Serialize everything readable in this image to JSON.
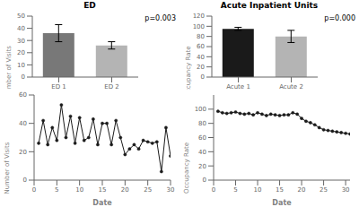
{
  "chart_data": [
    {
      "type": "bar",
      "title": "ED",
      "categories": [
        "ED 1",
        "ED 2"
      ],
      "values": [
        36,
        26
      ],
      "errors": [
        7,
        3
      ],
      "colors": [
        "#787878",
        "#b4b4b4"
      ],
      "ylim": [
        0,
        50
      ],
      "yticks": [
        0,
        10,
        20,
        30,
        40,
        50
      ],
      "y_label": "Number of Visits",
      "annotation": "p=0.003"
    },
    {
      "type": "bar",
      "title": "Acute Inpatient Units",
      "categories": [
        "Acute 1",
        "Acute 2"
      ],
      "values": [
        95,
        80
      ],
      "errors": [
        3,
        12
      ],
      "colors": [
        "#1a1a1a",
        "#b4b4b4"
      ],
      "ylim": [
        0,
        120
      ],
      "yticks": [
        0,
        20,
        40,
        60,
        80,
        100,
        120
      ],
      "y_label": "Occupancy Rate",
      "annotation": "p=0.000"
    },
    {
      "type": "line",
      "x": [
        1,
        2,
        3,
        4,
        5,
        6,
        7,
        8,
        9,
        10,
        11,
        12,
        13,
        14,
        15,
        16,
        17,
        18,
        19,
        20,
        21,
        22,
        23,
        24,
        25,
        26,
        27,
        28,
        29,
        30
      ],
      "values": [
        26,
        42,
        25,
        37,
        28,
        53,
        30,
        45,
        26,
        44,
        28,
        30,
        43,
        25,
        40,
        40,
        25,
        42,
        30,
        18,
        22,
        25,
        22,
        28,
        27,
        26,
        27,
        6,
        37,
        17
      ],
      "color": "#1a1a1a",
      "marker": "circle",
      "xlim": [
        0,
        30
      ],
      "ylim": [
        0,
        60
      ],
      "xticks": [
        0,
        5,
        10,
        15,
        20,
        25,
        30
      ],
      "yticks": [
        0,
        20,
        40,
        60
      ],
      "x_label": "Date",
      "y_label": "Number of Visits"
    },
    {
      "type": "line",
      "x": [
        1,
        2,
        3,
        4,
        5,
        6,
        7,
        8,
        9,
        10,
        11,
        12,
        13,
        14,
        15,
        16,
        17,
        18,
        19,
        20,
        21,
        22,
        23,
        24,
        25,
        26,
        27,
        28,
        29,
        30,
        31
      ],
      "values": [
        97,
        95,
        94,
        95,
        96,
        94,
        93,
        94,
        92,
        95,
        93,
        91,
        93,
        92,
        91,
        92,
        92,
        95,
        93,
        87,
        83,
        81,
        78,
        74,
        71,
        70,
        69,
        68,
        67,
        66,
        65
      ],
      "color": "#1a1a1a",
      "marker": "circle",
      "xlim": [
        0,
        31
      ],
      "ylim": [
        0,
        120
      ],
      "xticks": [
        0,
        5,
        10,
        15,
        20,
        25,
        30
      ],
      "yticks": [
        0,
        20,
        40,
        60,
        80,
        100
      ],
      "x_label": "Date",
      "y_label": "Occupancy Rate"
    }
  ]
}
